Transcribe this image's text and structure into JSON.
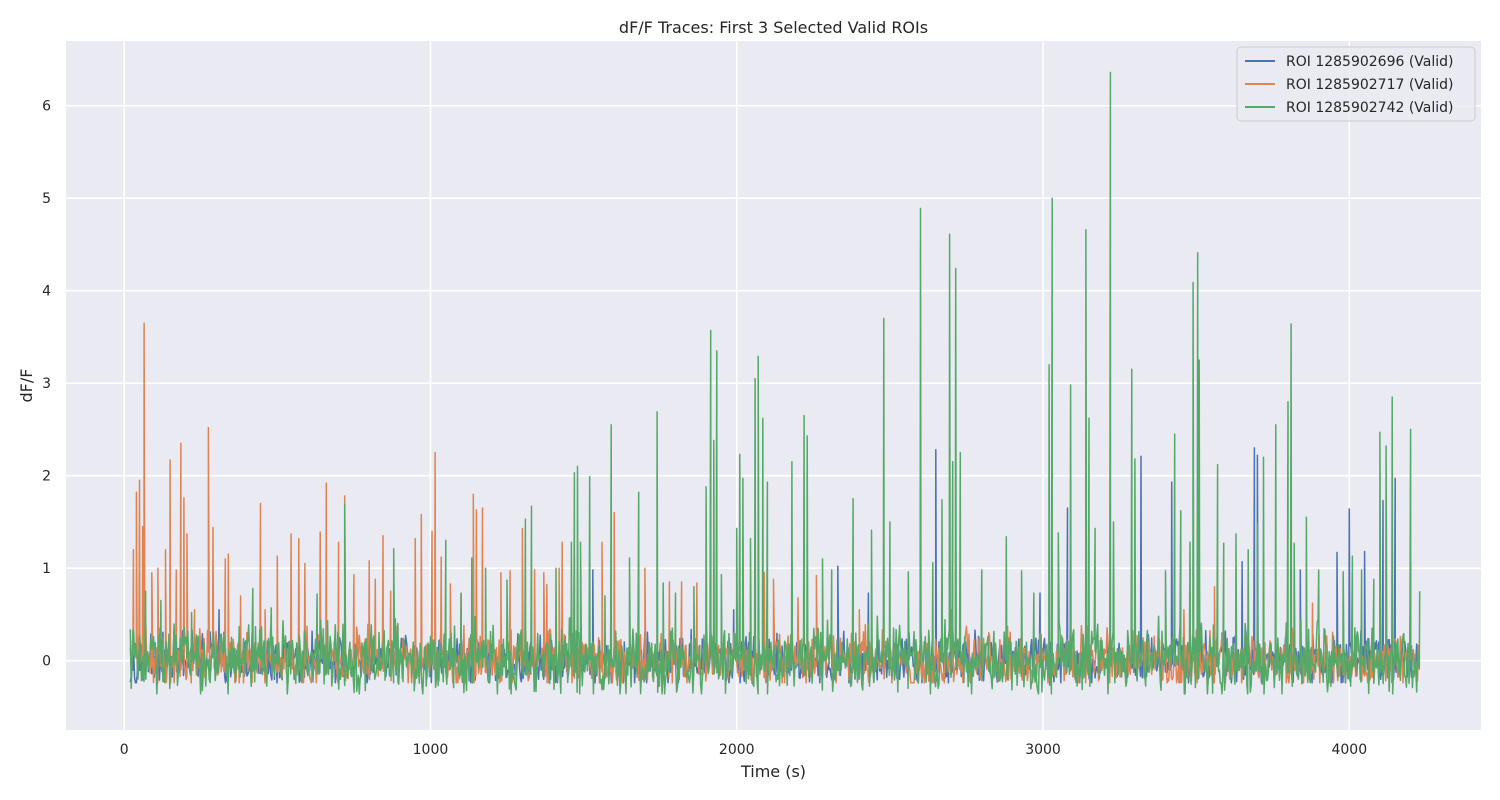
{
  "chart_data": {
    "type": "line",
    "title": "dF/F Traces: First 3 Selected Valid ROIs",
    "xlabel": "Time (s)",
    "ylabel": "dF/F",
    "xlim": [
      -190,
      4430
    ],
    "ylim": [
      -0.75,
      6.7
    ],
    "x_ticks": [
      0,
      1000,
      2000,
      3000,
      4000
    ],
    "x_tick_labels": [
      "0",
      "1000",
      "2000",
      "3000",
      "4000"
    ],
    "y_ticks": [
      0,
      1,
      2,
      3,
      4,
      5,
      6
    ],
    "y_tick_labels": [
      "0",
      "1",
      "2",
      "3",
      "4",
      "5",
      "6"
    ],
    "grid": true,
    "legend_position": "top-right",
    "background_color": "#eaeaf2",
    "x_range": [
      20,
      4230
    ],
    "series": [
      {
        "name": "ROI 1285902696 (Valid)",
        "color": "#4c72b0",
        "noise": [
          -0.24,
          0.34
        ],
        "peaks": [
          [
            310,
            0.55
          ],
          [
            1530,
            0.98
          ],
          [
            1990,
            0.55
          ],
          [
            2330,
            1.02
          ],
          [
            2430,
            0.73
          ],
          [
            2650,
            2.28
          ],
          [
            2990,
            0.73
          ],
          [
            3080,
            1.65
          ],
          [
            3320,
            2.21
          ],
          [
            3420,
            1.93
          ],
          [
            3510,
            0.9
          ],
          [
            3650,
            1.07
          ],
          [
            3690,
            2.3
          ],
          [
            3700,
            2.22
          ],
          [
            3840,
            0.98
          ],
          [
            3960,
            1.17
          ],
          [
            4000,
            1.64
          ],
          [
            4050,
            1.18
          ],
          [
            4110,
            1.73
          ],
          [
            4150,
            1.97
          ],
          [
            4200,
            1.06
          ]
        ]
      },
      {
        "name": "ROI 1285902717 (Valid)",
        "color": "#dd8452",
        "noise": [
          -0.24,
          0.42
        ],
        "peaks": [
          [
            30,
            1.2
          ],
          [
            40,
            1.82
          ],
          [
            50,
            1.95
          ],
          [
            60,
            1.45
          ],
          [
            65,
            3.65
          ],
          [
            90,
            0.95
          ],
          [
            110,
            1.0
          ],
          [
            135,
            1.2
          ],
          [
            150,
            2.17
          ],
          [
            170,
            0.98
          ],
          [
            185,
            2.35
          ],
          [
            195,
            1.76
          ],
          [
            205,
            1.37
          ],
          [
            230,
            0.55
          ],
          [
            275,
            2.52
          ],
          [
            290,
            1.44
          ],
          [
            330,
            1.1
          ],
          [
            340,
            1.15
          ],
          [
            380,
            0.7
          ],
          [
            420,
            0.68
          ],
          [
            445,
            1.7
          ],
          [
            460,
            0.55
          ],
          [
            500,
            1.13
          ],
          [
            545,
            1.37
          ],
          [
            570,
            1.32
          ],
          [
            590,
            1.05
          ],
          [
            640,
            1.39
          ],
          [
            660,
            1.92
          ],
          [
            700,
            1.28
          ],
          [
            720,
            1.78
          ],
          [
            750,
            0.93
          ],
          [
            800,
            1.08
          ],
          [
            820,
            0.88
          ],
          [
            845,
            1.35
          ],
          [
            870,
            0.75
          ],
          [
            950,
            1.32
          ],
          [
            970,
            1.58
          ],
          [
            1005,
            1.4
          ],
          [
            1015,
            2.25
          ],
          [
            1035,
            1.12
          ],
          [
            1065,
            0.83
          ],
          [
            1100,
            0.72
          ],
          [
            1140,
            1.8
          ],
          [
            1150,
            1.63
          ],
          [
            1170,
            1.65
          ],
          [
            1230,
            0.95
          ],
          [
            1260,
            0.97
          ],
          [
            1300,
            1.43
          ],
          [
            1340,
            0.98
          ],
          [
            1370,
            0.95
          ],
          [
            1380,
            0.82
          ],
          [
            1420,
            1.0
          ],
          [
            1430,
            1.28
          ],
          [
            1470,
            1.13
          ],
          [
            1560,
            1.28
          ],
          [
            1600,
            1.6
          ],
          [
            1700,
            1.0
          ],
          [
            1780,
            0.85
          ],
          [
            1820,
            0.85
          ],
          [
            1870,
            0.84
          ],
          [
            2020,
            0.78
          ],
          [
            2090,
            0.95
          ],
          [
            2120,
            0.88
          ],
          [
            2200,
            0.68
          ],
          [
            2260,
            0.92
          ],
          [
            2400,
            0.55
          ],
          [
            2600,
            0.6
          ],
          [
            2700,
            0.55
          ],
          [
            3300,
            0.62
          ],
          [
            3460,
            0.55
          ],
          [
            3560,
            0.8
          ],
          [
            3880,
            0.62
          ],
          [
            4100,
            0.68
          ]
        ]
      },
      {
        "name": "ROI 1285902742 (Valid)",
        "color": "#55a868",
        "noise": [
          -0.36,
          0.48
        ],
        "peaks": [
          [
            70,
            0.75
          ],
          [
            120,
            0.65
          ],
          [
            220,
            0.52
          ],
          [
            420,
            0.78
          ],
          [
            480,
            0.57
          ],
          [
            630,
            0.72
          ],
          [
            720,
            1.69
          ],
          [
            880,
            1.21
          ],
          [
            1050,
            1.3
          ],
          [
            1100,
            0.73
          ],
          [
            1135,
            1.11
          ],
          [
            1180,
            1.0
          ],
          [
            1250,
            0.87
          ],
          [
            1310,
            1.53
          ],
          [
            1330,
            1.67
          ],
          [
            1410,
            1.0
          ],
          [
            1460,
            1.28
          ],
          [
            1470,
            2.03
          ],
          [
            1480,
            2.1
          ],
          [
            1490,
            1.28
          ],
          [
            1520,
            1.99
          ],
          [
            1570,
            0.7
          ],
          [
            1590,
            2.55
          ],
          [
            1650,
            1.11
          ],
          [
            1680,
            1.82
          ],
          [
            1740,
            2.69
          ],
          [
            1760,
            0.84
          ],
          [
            1800,
            0.73
          ],
          [
            1860,
            0.8
          ],
          [
            1900,
            1.88
          ],
          [
            1915,
            3.57
          ],
          [
            1925,
            2.38
          ],
          [
            1935,
            3.35
          ],
          [
            1950,
            0.93
          ],
          [
            2000,
            1.43
          ],
          [
            2010,
            2.23
          ],
          [
            2020,
            1.97
          ],
          [
            2045,
            1.32
          ],
          [
            2060,
            3.05
          ],
          [
            2070,
            3.29
          ],
          [
            2085,
            2.62
          ],
          [
            2100,
            1.93
          ],
          [
            2180,
            2.15
          ],
          [
            2220,
            2.65
          ],
          [
            2230,
            2.43
          ],
          [
            2280,
            1.1
          ],
          [
            2310,
            0.98
          ],
          [
            2380,
            1.75
          ],
          [
            2440,
            1.41
          ],
          [
            2480,
            3.7
          ],
          [
            2500,
            1.5
          ],
          [
            2560,
            0.96
          ],
          [
            2600,
            4.89
          ],
          [
            2640,
            1.06
          ],
          [
            2670,
            1.74
          ],
          [
            2695,
            4.61
          ],
          [
            2705,
            2.15
          ],
          [
            2715,
            4.24
          ],
          [
            2730,
            2.25
          ],
          [
            2800,
            0.98
          ],
          [
            2880,
            1.34
          ],
          [
            2930,
            0.97
          ],
          [
            2970,
            0.73
          ],
          [
            3020,
            3.2
          ],
          [
            3030,
            5.0
          ],
          [
            3050,
            1.38
          ],
          [
            3090,
            2.98
          ],
          [
            3140,
            4.66
          ],
          [
            3150,
            2.62
          ],
          [
            3170,
            1.43
          ],
          [
            3220,
            6.36
          ],
          [
            3230,
            1.5
          ],
          [
            3290,
            3.15
          ],
          [
            3300,
            2.18
          ],
          [
            3400,
            0.97
          ],
          [
            3430,
            2.45
          ],
          [
            3450,
            1.62
          ],
          [
            3480,
            1.28
          ],
          [
            3490,
            4.09
          ],
          [
            3505,
            4.41
          ],
          [
            3510,
            3.25
          ],
          [
            3570,
            2.12
          ],
          [
            3590,
            1.27
          ],
          [
            3630,
            1.37
          ],
          [
            3670,
            1.2
          ],
          [
            3700,
            1.48
          ],
          [
            3720,
            2.2
          ],
          [
            3760,
            2.55
          ],
          [
            3800,
            2.8
          ],
          [
            3810,
            3.64
          ],
          [
            3820,
            1.27
          ],
          [
            3860,
            1.55
          ],
          [
            3900,
            0.98
          ],
          [
            3980,
            0.96
          ],
          [
            4010,
            1.13
          ],
          [
            4040,
            0.98
          ],
          [
            4080,
            0.88
          ],
          [
            4100,
            2.47
          ],
          [
            4120,
            2.32
          ],
          [
            4140,
            2.85
          ],
          [
            4200,
            2.5
          ],
          [
            4230,
            0.75
          ]
        ]
      }
    ]
  }
}
